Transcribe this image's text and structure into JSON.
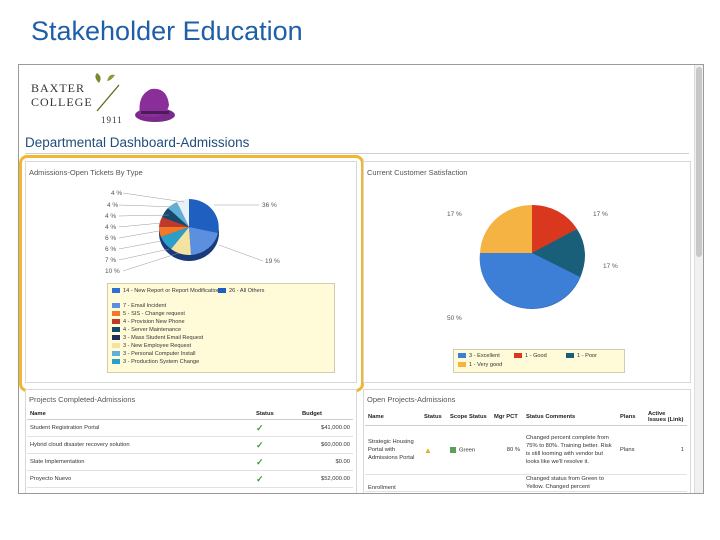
{
  "slide_title": "Stakeholder Education",
  "logo": {
    "line1": "Baxter",
    "line2": "College",
    "year": "1911"
  },
  "dashboard_title": "Departmental Dashboard-Admissions",
  "tickets_panel": {
    "title": "Admissions-Open Tickets By Type",
    "slice_labels": [
      "4 %",
      "4 %",
      "4 %",
      "4 %",
      "6 %",
      "6 %",
      "7 %",
      "10 %",
      "36 %",
      "19 %"
    ],
    "legend": [
      {
        "label": "14 - New Report or Report Modification",
        "color": "#2f6fd0"
      },
      {
        "label": "7 - Email Incident",
        "color": "#5b8fe0"
      },
      {
        "label": "5 - SIS - Change request",
        "color": "#f07a2a"
      },
      {
        "label": "4 - Provision New Phone",
        "color": "#c0392b"
      },
      {
        "label": "4 - Server Maintenance",
        "color": "#16496b"
      },
      {
        "label": "3 - Mass Student Email Request",
        "color": "#1f2f5a"
      },
      {
        "label": "3 - New Employee Request",
        "color": "#f4e2a0"
      },
      {
        "label": "3 - Personal Computer Install",
        "color": "#5fb0d8"
      },
      {
        "label": "3 - Production System Change",
        "color": "#2a9fc8"
      },
      {
        "label": "26 - All Others",
        "color": "#1f5fc0"
      }
    ]
  },
  "satisfaction_panel": {
    "title": "Current Customer Satisfaction",
    "slice_labels": [
      "17 %",
      "17 %",
      "17 %",
      "50 %"
    ],
    "legend": [
      {
        "label": "3 - Excellent",
        "color": "#3d7fd6"
      },
      {
        "label": "1 - Good",
        "color": "#d9381e"
      },
      {
        "label": "1 - Poor",
        "color": "#1a5f7a"
      },
      {
        "label": "1 - Very good",
        "color": "#f4b342"
      }
    ]
  },
  "projects_completed": {
    "title": "Projects Completed-Admissions",
    "headers": [
      "Name",
      "Status",
      "Budget"
    ],
    "rows": [
      {
        "name": "Student Registration Portal",
        "budget": "$41,000.00"
      },
      {
        "name": "Hybrid cloud disaster recovery solution",
        "budget": "$60,000.00"
      },
      {
        "name": "Slate Implementation",
        "budget": "$0.00"
      },
      {
        "name": "Proyecto Nuevo",
        "budget": "$52,000.00"
      }
    ]
  },
  "open_projects": {
    "title": "Open Projects-Admissions",
    "headers": [
      "Name",
      "Status",
      "Scope Status",
      "Mgr PCT",
      "Status Comments",
      "Plans",
      "Active Issues (Link)"
    ],
    "rows": [
      {
        "name": "Strategic Housing Portal with Admissions Portal",
        "scope": "Green",
        "pct": "80 %",
        "comments": "Changed percent complete from 75% to 80%. Training better. Risk is still looming with vendor but looks like we'll resolve it.",
        "plans": "Plans",
        "issues": "1"
      },
      {
        "name": "Enrollment",
        "scope": "",
        "pct": "",
        "comments": "Changed status from Green to Yellow. Changed percent",
        "plans": "",
        "issues": ""
      }
    ]
  }
}
